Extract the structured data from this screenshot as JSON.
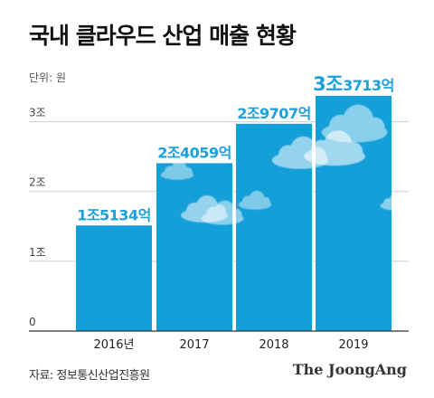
{
  "title": "국내 클라우드 산업 매출 현황",
  "unit_label": "단위: 원",
  "source": "자료: 정보통신산업진흥원",
  "brand": "The JoongAng",
  "colors": {
    "bar": "#149fd8",
    "grid": "#cfcfcf",
    "data_label": "#1aa0dc",
    "data_label_outline": "#ffffff"
  },
  "chart_data": {
    "type": "bar",
    "title": "국내 클라우드 산업 매출 현황",
    "ylabel": "단위: 원",
    "xlabel": "",
    "unit": "조 원",
    "categories": [
      "2016년",
      "2017",
      "2018",
      "2019"
    ],
    "values": [
      1.5134,
      2.4059,
      2.9707,
      3.3713
    ],
    "data_labels": [
      "1조5134억",
      "2조4059억",
      "2조9707억",
      "3조3713억"
    ],
    "ylim": [
      0,
      3.5
    ],
    "yticks": [
      0,
      1,
      2,
      3
    ],
    "ytick_labels": [
      "0",
      "1조",
      "2조",
      "3조"
    ],
    "grid": true,
    "legend": "none"
  }
}
